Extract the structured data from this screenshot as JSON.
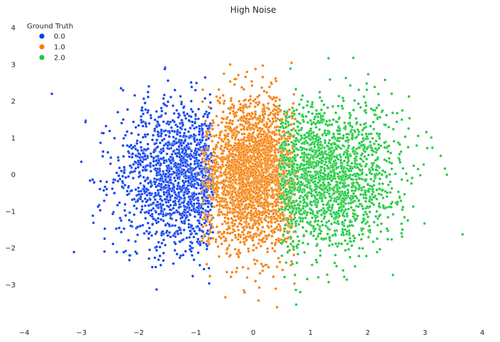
{
  "chart_data": {
    "type": "scatter",
    "title": "High Noise",
    "xlabel": "",
    "ylabel": "",
    "xlim": [
      -4,
      4
    ],
    "ylim": [
      -3.9,
      4.1
    ],
    "x_ticks": [
      "−4",
      "−3",
      "−2",
      "−1",
      "0",
      "1",
      "2",
      "3",
      "4"
    ],
    "y_ticks": [
      "−3",
      "−2",
      "−1",
      "0",
      "1",
      "2",
      "3",
      "4"
    ],
    "grid": false,
    "legend": {
      "title": "Ground Truth",
      "placement": "top-left",
      "entries": [
        "0.0",
        "1.0",
        "2.0"
      ]
    },
    "series": [
      {
        "name": "0.0",
        "color": "#0a3ff0",
        "center": [
          -1.2,
          0.0
        ],
        "spread": [
          0.6,
          1.0
        ],
        "x_range": [
          -3.7,
          -0.7
        ],
        "count": 1500
      },
      {
        "name": "1.0",
        "color": "#f57c00",
        "center": [
          0.0,
          0.0
        ],
        "spread": [
          0.45,
          1.0
        ],
        "x_range": [
          -0.9,
          0.75
        ],
        "count": 2600
      },
      {
        "name": "2.0",
        "color": "#1ac93c",
        "center": [
          1.2,
          0.0
        ],
        "spread": [
          0.65,
          1.0
        ],
        "x_range": [
          0.45,
          3.9
        ],
        "count": 1800
      }
    ]
  }
}
